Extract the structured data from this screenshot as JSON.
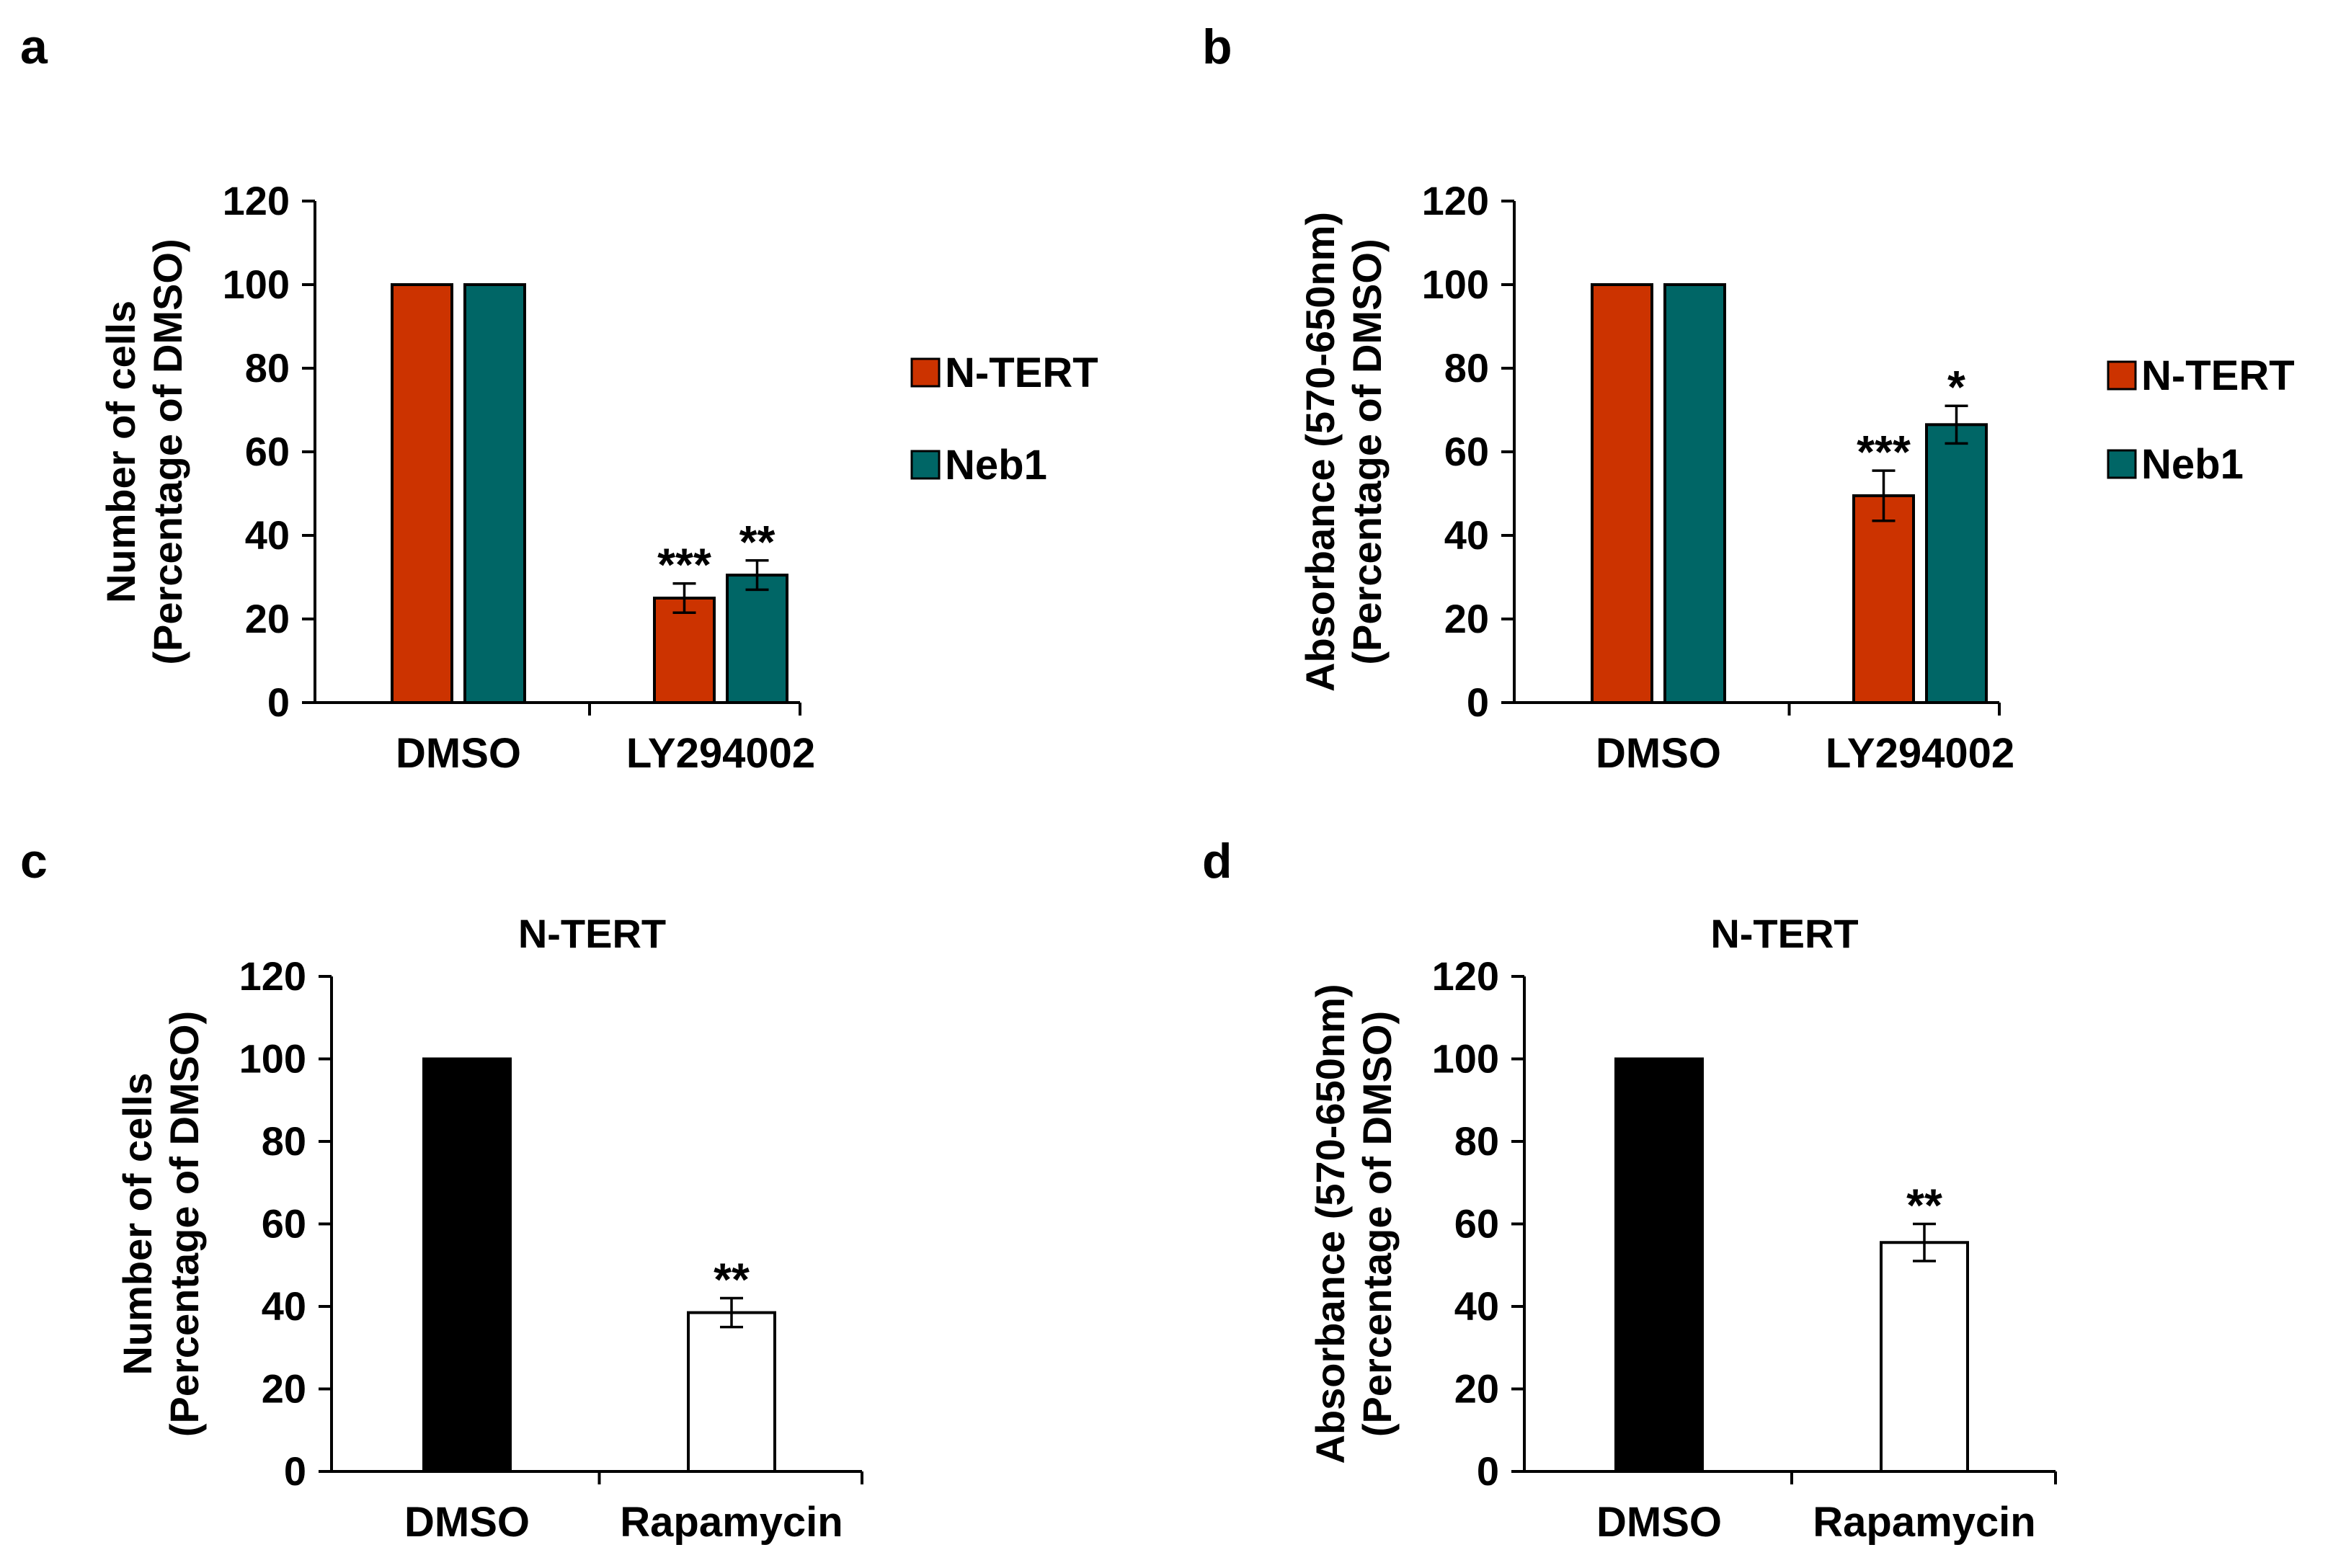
{
  "colors": {
    "ntert": "#CC3300",
    "neb1": "#006666",
    "black": "#000000",
    "white": "#FFFFFF"
  },
  "chart_data": [
    {
      "panel_label": "a",
      "type": "bar",
      "title": "",
      "ylabel_lines": [
        "Number of cells",
        "(Percentage of DMSO)"
      ],
      "xlabel": "",
      "ylim": [
        0,
        120
      ],
      "yticks": [
        0,
        20,
        40,
        60,
        80,
        100,
        120
      ],
      "categories": [
        "DMSO",
        "LY294002"
      ],
      "series": [
        {
          "name": "N-TERT",
          "color": "#CC3300",
          "values": [
            100,
            25
          ],
          "errors": [
            0,
            3.5
          ],
          "annotations": [
            "",
            "***"
          ]
        },
        {
          "name": "Neb1",
          "color": "#006666",
          "values": [
            100,
            30.5
          ],
          "errors": [
            0,
            3.5
          ],
          "annotations": [
            "",
            "**"
          ]
        }
      ],
      "legend": "right"
    },
    {
      "panel_label": "b",
      "type": "bar",
      "title": "",
      "ylabel_lines": [
        "Absorbance (570-650nm)",
        "(Percentage of DMSO)"
      ],
      "xlabel": "",
      "ylim": [
        0,
        120
      ],
      "yticks": [
        0,
        20,
        40,
        60,
        80,
        100,
        120
      ],
      "categories": [
        "DMSO",
        "LY294002"
      ],
      "series": [
        {
          "name": "N-TERT",
          "color": "#CC3300",
          "values": [
            100,
            49.5
          ],
          "errors": [
            0,
            6
          ],
          "annotations": [
            "",
            "***"
          ]
        },
        {
          "name": "Neb1",
          "color": "#006666",
          "values": [
            100,
            66.5
          ],
          "errors": [
            0,
            4.5
          ],
          "annotations": [
            "",
            "*"
          ]
        }
      ],
      "legend": "right"
    },
    {
      "panel_label": "c",
      "type": "bar",
      "title": "N-TERT",
      "ylabel_lines": [
        "Number of cells",
        "(Percentage of DMSO)"
      ],
      "xlabel": "",
      "ylim": [
        0,
        120
      ],
      "yticks": [
        0,
        20,
        40,
        60,
        80,
        100,
        120
      ],
      "categories": [
        "DMSO",
        "Rapamycin"
      ],
      "series": [
        {
          "name": "",
          "colors": [
            "#000000",
            "#FFFFFF"
          ],
          "values": [
            100,
            38.5
          ],
          "errors": [
            0,
            3.5
          ],
          "annotations": [
            "",
            "**"
          ]
        }
      ],
      "legend": "none"
    },
    {
      "panel_label": "d",
      "type": "bar",
      "title": "N-TERT",
      "ylabel_lines": [
        "Absorbance (570-650nm)",
        "(Percentage of DMSO)"
      ],
      "xlabel": "",
      "ylim": [
        0,
        120
      ],
      "yticks": [
        0,
        20,
        40,
        60,
        80,
        100,
        120
      ],
      "categories": [
        "DMSO",
        "Rapamycin"
      ],
      "series": [
        {
          "name": "",
          "colors": [
            "#000000",
            "#FFFFFF"
          ],
          "values": [
            100,
            55.5
          ],
          "errors": [
            0,
            4.5
          ],
          "annotations": [
            "",
            "**"
          ]
        }
      ],
      "legend": "none"
    }
  ]
}
